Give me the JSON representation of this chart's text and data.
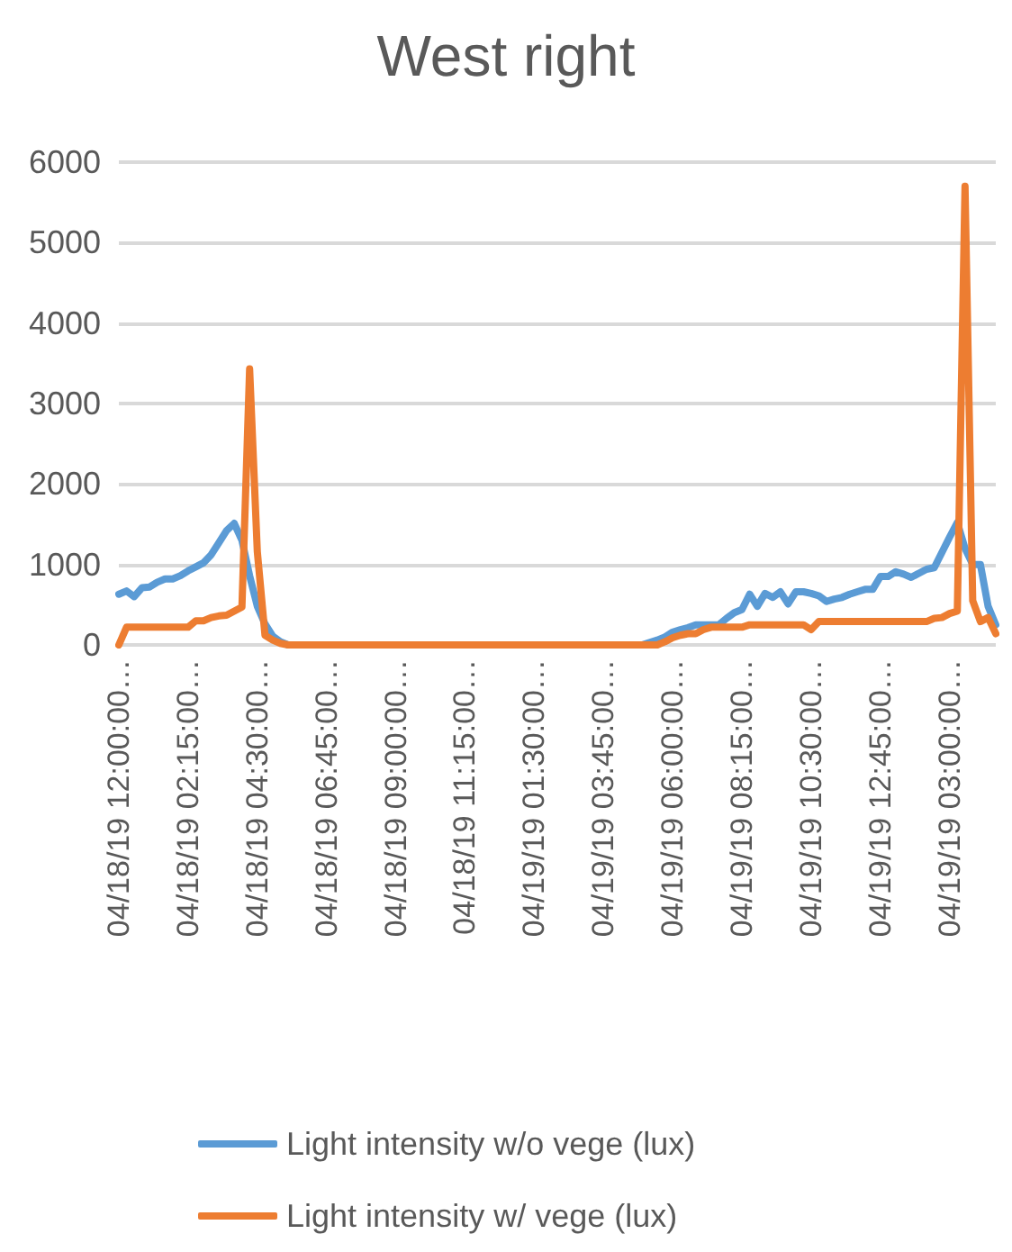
{
  "chart_data": {
    "type": "line",
    "title": "West right",
    "categories": [
      "04/18/19 12:00:00…",
      null,
      null,
      null,
      null,
      null,
      null,
      null,
      null,
      "04/18/19 02:15:00…",
      null,
      null,
      null,
      null,
      null,
      null,
      null,
      null,
      "04/18/19 04:30:00…",
      null,
      null,
      null,
      null,
      null,
      null,
      null,
      null,
      "04/18/19 06:45:00…",
      null,
      null,
      null,
      null,
      null,
      null,
      null,
      null,
      "04/18/19 09:00:00…",
      null,
      null,
      null,
      null,
      null,
      null,
      null,
      null,
      "04/18/19 11:15:00…",
      null,
      null,
      null,
      null,
      null,
      null,
      null,
      null,
      "04/19/19 01:30:00…",
      null,
      null,
      null,
      null,
      null,
      null,
      null,
      null,
      "04/19/19 03:45:00…",
      null,
      null,
      null,
      null,
      null,
      null,
      null,
      null,
      "04/19/19 06:00:00…",
      null,
      null,
      null,
      null,
      null,
      null,
      null,
      null,
      "04/19/19 08:15:00…",
      null,
      null,
      null,
      null,
      null,
      null,
      null,
      null,
      "04/19/19 10:30:00…",
      null,
      null,
      null,
      null,
      null,
      null,
      null,
      null,
      "04/19/19 12:45:00…",
      null,
      null,
      null,
      null,
      null,
      null,
      null,
      null,
      "04/19/19 03:00:00…",
      null,
      null,
      null,
      null,
      null,
      null
    ],
    "series": [
      {
        "name": "Light intensity w/o vege (lux)",
        "color": "#5b9bd5",
        "values": [
          630,
          670,
          600,
          710,
          720,
          780,
          820,
          820,
          860,
          920,
          970,
          1020,
          1120,
          1270,
          1420,
          1510,
          1300,
          860,
          480,
          260,
          110,
          40,
          0,
          0,
          0,
          0,
          0,
          0,
          0,
          0,
          0,
          0,
          0,
          0,
          0,
          0,
          0,
          0,
          0,
          0,
          0,
          0,
          0,
          0,
          0,
          0,
          0,
          0,
          0,
          0,
          0,
          0,
          0,
          0,
          0,
          0,
          0,
          0,
          0,
          0,
          0,
          0,
          0,
          0,
          0,
          0,
          0,
          0,
          0,
          30,
          60,
          100,
          160,
          190,
          215,
          250,
          250,
          250,
          250,
          330,
          400,
          440,
          630,
          480,
          640,
          590,
          660,
          510,
          660,
          660,
          640,
          610,
          540,
          570,
          590,
          630,
          660,
          690,
          690,
          850,
          850,
          910,
          880,
          840,
          890,
          940,
          960,
          1150,
          1340,
          1520,
          1200,
          1000,
          1000,
          480,
          250
        ]
      },
      {
        "name": "Light intensity w/ vege (lux)",
        "color": "#ed7d31",
        "values": [
          0,
          220,
          220,
          220,
          220,
          220,
          220,
          220,
          220,
          220,
          300,
          300,
          340,
          360,
          370,
          420,
          470,
          3430,
          1160,
          120,
          60,
          20,
          0,
          0,
          0,
          0,
          0,
          0,
          0,
          0,
          0,
          0,
          0,
          0,
          0,
          0,
          0,
          0,
          0,
          0,
          0,
          0,
          0,
          0,
          0,
          0,
          0,
          0,
          0,
          0,
          0,
          0,
          0,
          0,
          0,
          0,
          0,
          0,
          0,
          0,
          0,
          0,
          0,
          0,
          0,
          0,
          0,
          0,
          0,
          0,
          0,
          40,
          90,
          120,
          140,
          140,
          190,
          220,
          220,
          220,
          220,
          220,
          250,
          250,
          250,
          250,
          250,
          250,
          250,
          250,
          190,
          290,
          290,
          290,
          290,
          290,
          290,
          290,
          290,
          290,
          290,
          290,
          290,
          290,
          290,
          290,
          330,
          340,
          390,
          420,
          5700,
          550,
          290,
          340,
          140
        ]
      }
    ],
    "ylim": [
      0,
      6000
    ],
    "yticks": [
      0,
      1000,
      2000,
      3000,
      4000,
      5000,
      6000
    ],
    "grid": "y",
    "legend": "bottom",
    "marker": "none",
    "line_style": "solid"
  }
}
